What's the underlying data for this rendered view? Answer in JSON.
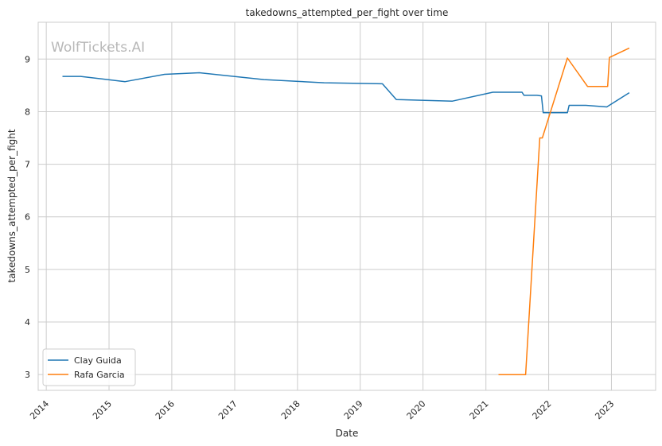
{
  "chart_data": {
    "type": "line",
    "title": "takedowns_attempted_per_fight over time",
    "xlabel": "Date",
    "ylabel": "takedowns_attempted_per_fight",
    "watermark": "WolfTickets.AI",
    "xlim": [
      "2013-11-15",
      "2023-09-15"
    ],
    "ylim": [
      2.7,
      9.7
    ],
    "x_ticks": [
      "2014-01-01",
      "2015-01-01",
      "2016-01-01",
      "2017-01-01",
      "2018-01-01",
      "2019-01-01",
      "2020-01-01",
      "2021-01-01",
      "2022-01-01",
      "2023-01-01"
    ],
    "x_tick_labels": [
      "2014",
      "2015",
      "2016",
      "2017",
      "2018",
      "2019",
      "2020",
      "2021",
      "2022",
      "2023"
    ],
    "y_ticks": [
      3,
      4,
      5,
      6,
      7,
      8,
      9
    ],
    "y_tick_labels": [
      "3",
      "4",
      "5",
      "6",
      "7",
      "8",
      "9"
    ],
    "grid": true,
    "legend_position": "lower-left",
    "series": [
      {
        "name": "Clay Guida",
        "color": "#1f77b4",
        "points": [
          [
            "2014-04-05",
            8.67
          ],
          [
            "2014-07-20",
            8.67
          ],
          [
            "2015-04-05",
            8.57
          ],
          [
            "2015-11-20",
            8.71
          ],
          [
            "2016-06-10",
            8.74
          ],
          [
            "2017-06-20",
            8.61
          ],
          [
            "2018-06-05",
            8.55
          ],
          [
            "2019-05-10",
            8.53
          ],
          [
            "2019-07-30",
            8.23
          ],
          [
            "2020-06-20",
            8.2
          ],
          [
            "2021-02-10",
            8.37
          ],
          [
            "2021-07-30",
            8.37
          ],
          [
            "2021-08-10",
            8.31
          ],
          [
            "2021-10-25",
            8.31
          ],
          [
            "2021-11-20",
            8.3
          ],
          [
            "2021-11-30",
            7.98
          ],
          [
            "2022-04-20",
            7.98
          ],
          [
            "2022-04-30",
            8.12
          ],
          [
            "2022-08-05",
            8.12
          ],
          [
            "2022-12-05",
            8.09
          ],
          [
            "2023-04-15",
            8.36
          ]
        ]
      },
      {
        "name": "Rafa Garcia",
        "color": "#ff7f0e",
        "points": [
          [
            "2021-03-15",
            3.0
          ],
          [
            "2021-08-20",
            3.0
          ],
          [
            "2021-11-10",
            7.5
          ],
          [
            "2021-11-25",
            7.5
          ],
          [
            "2022-04-20",
            9.02
          ],
          [
            "2022-08-15",
            8.48
          ],
          [
            "2022-12-10",
            8.48
          ],
          [
            "2022-12-20",
            9.03
          ],
          [
            "2023-04-15",
            9.21
          ]
        ]
      }
    ]
  }
}
